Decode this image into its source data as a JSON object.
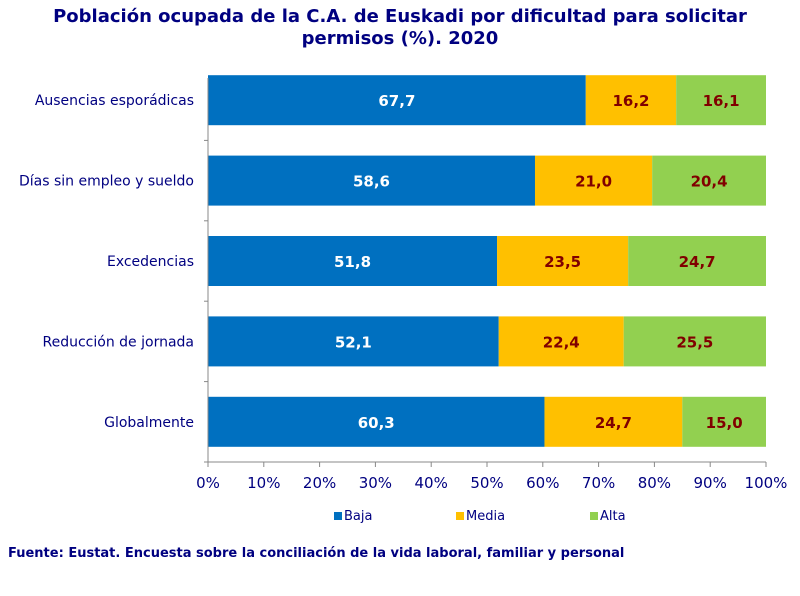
{
  "title_line1": "Población ocupada de la C.A. de Euskadi por dificultad para solicitar",
  "title_line2": "permisos (%). 2020",
  "source": "Fuente: Eustat. Encuesta sobre la conciliación de la vida laboral, familiar y personal",
  "colors": {
    "Baja": "#0070c0",
    "Media": "#ffc000",
    "Alta": "#92d050",
    "text_dark": "#800000",
    "text_light": "#ffffff",
    "axis_text": "#000080"
  },
  "chart_data": {
    "type": "bar",
    "orientation": "horizontal",
    "stacked": true,
    "title": "Población ocupada de la C.A. de Euskadi por dificultad para solicitar permisos (%). 2020",
    "categories": [
      "Ausencias esporádicas",
      "Días sin empleo y sueldo",
      "Excedencias",
      "Reducción de jornada",
      "Globalmente"
    ],
    "series": [
      {
        "name": "Baja",
        "values": [
          67.7,
          58.6,
          51.8,
          52.1,
          60.3
        ],
        "labels": [
          "67,7",
          "58,6",
          "51,8",
          "52,1",
          "60,3"
        ]
      },
      {
        "name": "Media",
        "values": [
          16.2,
          21.0,
          23.5,
          22.4,
          24.7
        ],
        "labels": [
          "16,2",
          "21,0",
          "23,5",
          "22,4",
          "24,7"
        ]
      },
      {
        "name": "Alta",
        "values": [
          16.1,
          20.4,
          24.7,
          25.5,
          15.0
        ],
        "labels": [
          "16,1",
          "20,4",
          "24,7",
          "25,5",
          "15,0"
        ]
      }
    ],
    "xlim": [
      0,
      100
    ],
    "xticks": [
      "0%",
      "10%",
      "20%",
      "30%",
      "40%",
      "50%",
      "60%",
      "70%",
      "80%",
      "90%",
      "100%"
    ],
    "legend_position": "bottom",
    "grid": false
  }
}
